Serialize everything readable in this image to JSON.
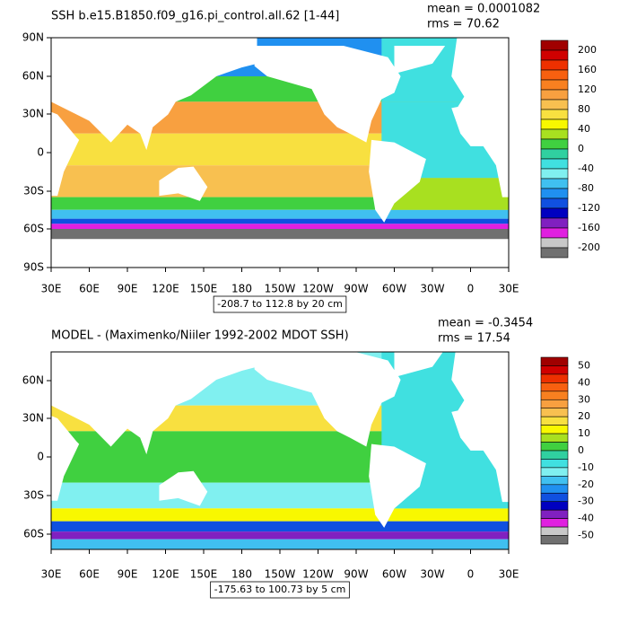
{
  "palette": [
    "#a00000",
    "#d00000",
    "#ee3000",
    "#f86010",
    "#f88020",
    "#f8a040",
    "#f8c050",
    "#f8e040",
    "#f8f800",
    "#a8e020",
    "#40d040",
    "#30d0a0",
    "#40e0e0",
    "#80f0f0",
    "#40c0f0",
    "#2090f0",
    "#1050e0",
    "#0000c0",
    "#8020c0",
    "#e020e0",
    "#c8c8c8",
    "#707070"
  ],
  "panels": [
    {
      "title": "SSH b.e15.B1850.f09_g16.pi_control.all.62 [1-44]",
      "mean": "mean = 0.0001082",
      "rms": "rms = 70.62",
      "info": "-208.7 to 112.8 by 20 cm",
      "y_ticks": [
        "90N",
        "60N",
        "30N",
        "0",
        "30S",
        "60S",
        "90S"
      ],
      "x_ticks": [
        "30E",
        "60E",
        "90E",
        "120E",
        "150E",
        "180",
        "150W",
        "120W",
        "90W",
        "60W",
        "30W",
        "0",
        "30E"
      ],
      "colorbar_labels": [
        "200",
        "160",
        "120",
        "80",
        "40",
        "0",
        "-40",
        "-80",
        "-120",
        "-160",
        "-200"
      ]
    },
    {
      "title": "MODEL - (Maximenko/Niiler 1992-2002 MDOT SSH)",
      "mean": "mean = -0.3454",
      "rms": "rms = 17.54",
      "info": "-175.63 to 100.73 by 5 cm",
      "y_ticks": [
        "60N",
        "30N",
        "0",
        "30S",
        "60S"
      ],
      "x_ticks": [
        "30E",
        "60E",
        "90E",
        "120E",
        "150E",
        "180",
        "150W",
        "120W",
        "90W",
        "60W",
        "30W",
        "0",
        "30E"
      ],
      "colorbar_labels": [
        "50",
        "40",
        "30",
        "20",
        "10",
        "0",
        "-10",
        "-20",
        "-30",
        "-40",
        "-50"
      ]
    }
  ]
}
